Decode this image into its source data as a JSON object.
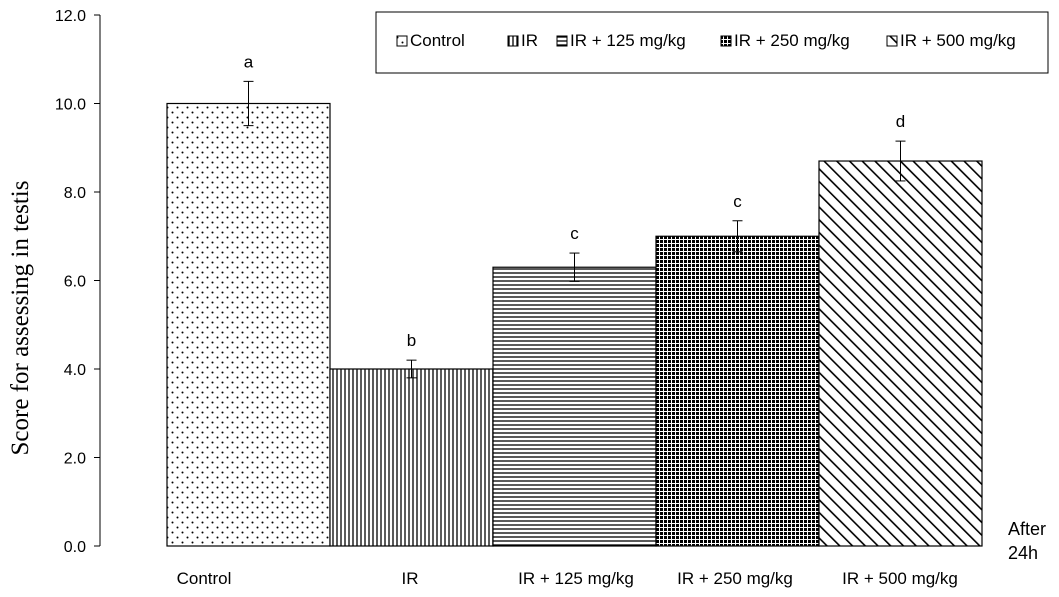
{
  "chart_data": {
    "type": "bar",
    "title": "",
    "xlabel": "",
    "ylabel": "Score for assessing in testis",
    "x_suffix_label": [
      "After",
      "24h"
    ],
    "ylim": [
      0,
      12
    ],
    "yticks": [
      "0.0",
      "2.0",
      "4.0",
      "6.0",
      "8.0",
      "10.0",
      "12.0"
    ],
    "categories": [
      "Control",
      "IR",
      "IR + 125 mg/kg",
      "IR + 250 mg/kg",
      "IR + 500 mg/kg"
    ],
    "values": [
      10.0,
      4.0,
      6.3,
      7.0,
      8.7
    ],
    "errors": [
      0.5,
      0.2,
      0.32,
      0.35,
      0.45
    ],
    "significance_letters": [
      "a",
      "b",
      "c",
      "c",
      "d"
    ],
    "legend": {
      "placement": "top-right",
      "entries": [
        "Control",
        "IR",
        "IR + 125 mg/kg",
        "IR + 250 mg/kg",
        "IR + 500 mg/kg"
      ]
    },
    "patterns": [
      "dots",
      "vertical-lines",
      "horizontal-lines",
      "dense-crosshatch",
      "diagonal-lines"
    ],
    "grid": false,
    "colors": {
      "bar_outline": "#000000",
      "background": "#ffffff"
    }
  }
}
